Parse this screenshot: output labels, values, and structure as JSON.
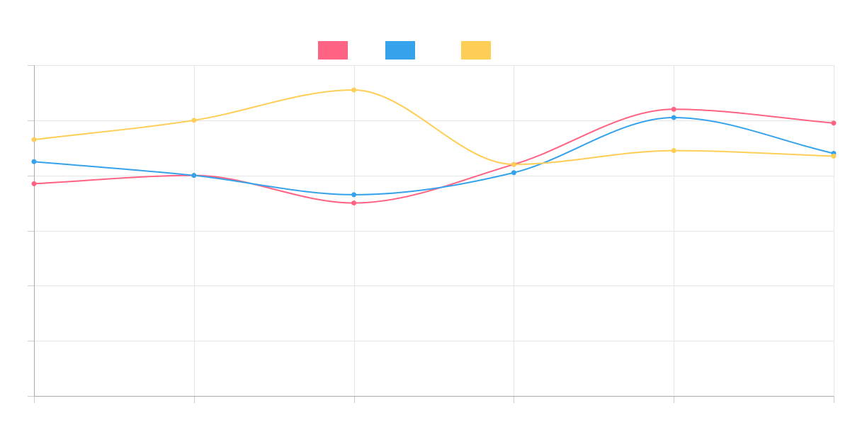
{
  "chart_data": {
    "type": "line",
    "title": "",
    "xlabel": "",
    "ylabel": "",
    "categories": [
      "",
      "",
      "",
      "",
      "",
      ""
    ],
    "ylim": [
      0,
      60
    ],
    "grid": true,
    "legend_position": "top",
    "smooth": true,
    "series": [
      {
        "name": "",
        "color": "#ff6384",
        "values": [
          38.5,
          40,
          35,
          42,
          52,
          49.5
        ]
      },
      {
        "name": "",
        "color": "#36a2eb",
        "values": [
          42.5,
          40,
          36.5,
          40.5,
          50.5,
          44
        ]
      },
      {
        "name": "",
        "color": "#ffce56",
        "values": [
          46.5,
          50,
          55.5,
          42,
          44.5,
          43.5
        ]
      }
    ]
  }
}
